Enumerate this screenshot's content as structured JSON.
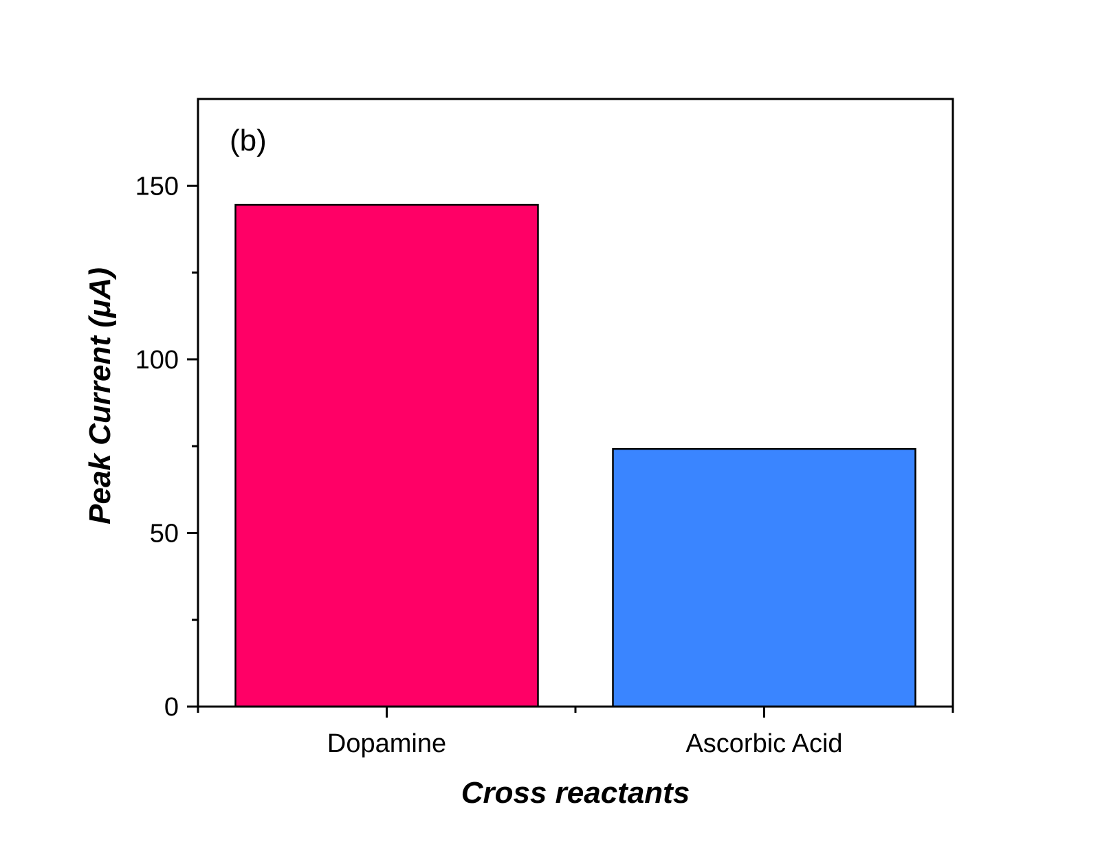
{
  "chart_data": {
    "type": "bar",
    "panel_label": "(b)",
    "categories": [
      "Dopamine",
      "Ascorbic Acid"
    ],
    "values": [
      144.5,
      74.2
    ],
    "colors": [
      "#ff0066",
      "#3a85ff"
    ],
    "xlabel": "Cross reactants",
    "ylabel": "Peak Current (μA)",
    "ylim": [
      0,
      175
    ],
    "y_ticks": [
      0,
      50,
      100,
      150
    ],
    "y_minor_ticks": [
      25,
      75,
      125
    ],
    "grid": false,
    "legend": false
  }
}
